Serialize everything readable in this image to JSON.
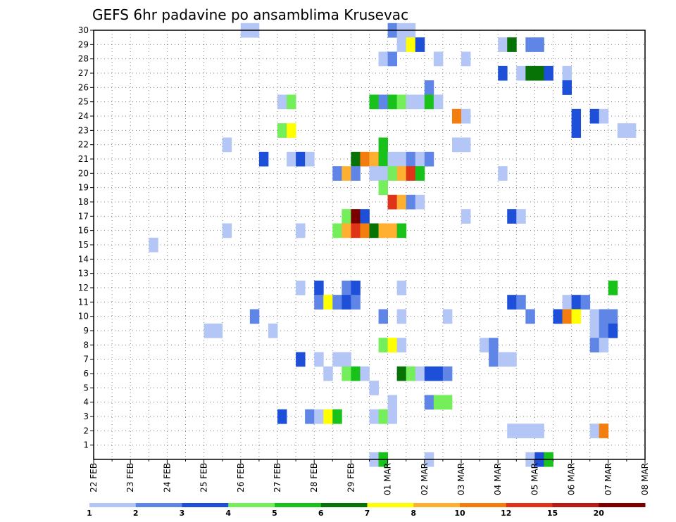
{
  "chart_data": {
    "type": "heatmap",
    "title": "GEFS 6hr padavine po ansamblima Krusevac",
    "y_ticks": [
      "1",
      "2",
      "3",
      "4",
      "5",
      "6",
      "7",
      "8",
      "9",
      "10",
      "11",
      "12",
      "13",
      "14",
      "15",
      "16",
      "17",
      "18",
      "19",
      "20",
      "21",
      "22",
      "23",
      "24",
      "25",
      "26",
      "27",
      "28",
      "29",
      "30"
    ],
    "x_ticks": [
      "22 FEB",
      "23 FEB",
      "24 FEB",
      "25 FEB",
      "26 FEB",
      "27 FEB",
      "28 FEB",
      "29 FEB",
      "01 MAR",
      "02 MAR",
      "03 MAR",
      "04 MAR",
      "05 MAR",
      "06 MAR",
      "07 MAR",
      "08 MAR"
    ],
    "xlim_days": [
      0,
      15
    ],
    "ylim": [
      0,
      30
    ],
    "grid": true,
    "legend": {
      "position": "bottom",
      "labels": [
        "1",
        "2",
        "3",
        "4",
        "5",
        "6",
        "7",
        "8",
        "10",
        "12",
        "15",
        "20"
      ],
      "colors": [
        "#b3c6f5",
        "#5f85e6",
        "#1e4fd8",
        "#74ee5a",
        "#18c21b",
        "#077307",
        "#ffff00",
        "#ffb030",
        "#f47d10",
        "#e03418",
        "#b81b14",
        "#7a0000"
      ]
    },
    "color_bins": {
      "1": "#b3c6f5",
      "2": "#5f85e6",
      "3": "#1e4fd8",
      "4": "#74ee5a",
      "5": "#18c21b",
      "6": "#077307",
      "7": "#ffff00",
      "8": "#ffb030",
      "10": "#f47d10",
      "12": "#e03418",
      "15": "#b81b14",
      "20": "#7a0000"
    },
    "cells": [
      [
        4.0,
        30,
        1
      ],
      [
        4.25,
        30,
        1
      ],
      [
        8.0,
        30,
        2
      ],
      [
        8.25,
        30,
        1
      ],
      [
        8.5,
        30,
        1
      ],
      [
        8.25,
        29,
        1
      ],
      [
        8.5,
        29,
        7
      ],
      [
        8.75,
        29,
        3
      ],
      [
        11.0,
        29,
        1
      ],
      [
        11.25,
        29,
        6
      ],
      [
        11.75,
        29,
        2
      ],
      [
        12.0,
        29,
        2
      ],
      [
        7.75,
        28,
        1
      ],
      [
        8.0,
        28,
        2
      ],
      [
        9.25,
        28,
        1
      ],
      [
        10.0,
        28,
        1
      ],
      [
        11.0,
        27,
        3
      ],
      [
        11.5,
        27,
        1
      ],
      [
        11.75,
        27,
        6
      ],
      [
        12.0,
        27,
        6
      ],
      [
        12.25,
        27,
        3
      ],
      [
        12.75,
        27,
        1
      ],
      [
        9.0,
        26,
        2
      ],
      [
        12.75,
        26,
        3
      ],
      [
        5.0,
        25,
        1
      ],
      [
        5.25,
        25,
        4
      ],
      [
        7.5,
        25,
        5
      ],
      [
        7.75,
        25,
        2
      ],
      [
        8.0,
        25,
        5
      ],
      [
        8.25,
        25,
        4
      ],
      [
        8.5,
        25,
        1
      ],
      [
        8.75,
        25,
        1
      ],
      [
        9.0,
        25,
        5
      ],
      [
        9.25,
        25,
        1
      ],
      [
        9.75,
        24,
        10
      ],
      [
        10.0,
        24,
        1
      ],
      [
        13.0,
        24,
        3
      ],
      [
        13.5,
        24,
        3
      ],
      [
        13.75,
        24,
        1
      ],
      [
        13.0,
        23,
        3
      ],
      [
        14.25,
        23,
        1
      ],
      [
        14.5,
        23,
        1
      ],
      [
        5.0,
        23,
        4
      ],
      [
        5.25,
        23,
        7
      ],
      [
        3.5,
        22,
        1
      ],
      [
        7.75,
        22,
        5
      ],
      [
        9.75,
        22,
        1
      ],
      [
        10.0,
        22,
        1
      ],
      [
        4.5,
        21,
        3
      ],
      [
        5.25,
        21,
        1
      ],
      [
        5.5,
        21,
        3
      ],
      [
        5.75,
        21,
        1
      ],
      [
        7.0,
        21,
        6
      ],
      [
        7.25,
        21,
        10
      ],
      [
        7.5,
        21,
        8
      ],
      [
        7.75,
        21,
        5
      ],
      [
        8.0,
        21,
        1
      ],
      [
        8.25,
        21,
        1
      ],
      [
        8.5,
        21,
        2
      ],
      [
        8.75,
        21,
        1
      ],
      [
        9.0,
        21,
        2
      ],
      [
        6.5,
        20,
        2
      ],
      [
        6.75,
        20,
        8
      ],
      [
        7.0,
        20,
        2
      ],
      [
        7.5,
        20,
        1
      ],
      [
        7.75,
        20,
        1
      ],
      [
        8.0,
        20,
        4
      ],
      [
        8.25,
        20,
        8
      ],
      [
        8.5,
        20,
        12
      ],
      [
        8.75,
        20,
        5
      ],
      [
        11.0,
        20,
        1
      ],
      [
        7.75,
        19,
        4
      ],
      [
        8.0,
        18,
        12
      ],
      [
        8.25,
        18,
        8
      ],
      [
        8.5,
        18,
        2
      ],
      [
        8.75,
        18,
        1
      ],
      [
        6.75,
        17,
        4
      ],
      [
        7.0,
        17,
        20
      ],
      [
        7.25,
        17,
        3
      ],
      [
        10.0,
        17,
        1
      ],
      [
        11.25,
        17,
        3
      ],
      [
        11.5,
        17,
        1
      ],
      [
        3.5,
        16,
        1
      ],
      [
        5.5,
        16,
        1
      ],
      [
        6.5,
        16,
        4
      ],
      [
        6.75,
        16,
        8
      ],
      [
        7.0,
        16,
        12
      ],
      [
        7.25,
        16,
        10
      ],
      [
        7.5,
        16,
        6
      ],
      [
        7.75,
        16,
        8
      ],
      [
        8.0,
        16,
        8
      ],
      [
        8.25,
        16,
        5
      ],
      [
        1.5,
        15,
        1
      ],
      [
        5.5,
        12,
        1
      ],
      [
        6.0,
        12,
        3
      ],
      [
        6.75,
        12,
        2
      ],
      [
        7.0,
        12,
        3
      ],
      [
        8.25,
        12,
        1
      ],
      [
        14.0,
        12,
        5
      ],
      [
        6.0,
        11,
        2
      ],
      [
        6.25,
        11,
        7
      ],
      [
        6.5,
        11,
        2
      ],
      [
        6.75,
        11,
        3
      ],
      [
        7.0,
        11,
        2
      ],
      [
        11.25,
        11,
        3
      ],
      [
        11.5,
        11,
        2
      ],
      [
        12.75,
        11,
        1
      ],
      [
        13.0,
        11,
        3
      ],
      [
        13.25,
        11,
        2
      ],
      [
        4.25,
        10,
        2
      ],
      [
        7.75,
        10,
        2
      ],
      [
        8.25,
        10,
        1
      ],
      [
        9.5,
        10,
        1
      ],
      [
        11.75,
        10,
        2
      ],
      [
        12.5,
        10,
        3
      ],
      [
        12.75,
        10,
        10
      ],
      [
        13.0,
        10,
        7
      ],
      [
        13.5,
        10,
        1
      ],
      [
        13.75,
        10,
        2
      ],
      [
        14.0,
        10,
        2
      ],
      [
        3.0,
        9,
        1
      ],
      [
        3.25,
        9,
        1
      ],
      [
        4.75,
        9,
        1
      ],
      [
        13.5,
        9,
        1
      ],
      [
        13.75,
        9,
        2
      ],
      [
        14.0,
        9,
        3
      ],
      [
        7.75,
        8,
        4
      ],
      [
        8.0,
        8,
        7
      ],
      [
        8.25,
        8,
        1
      ],
      [
        10.5,
        8,
        1
      ],
      [
        10.75,
        8,
        2
      ],
      [
        13.5,
        8,
        2
      ],
      [
        13.75,
        8,
        1
      ],
      [
        5.5,
        7,
        3
      ],
      [
        6.0,
        7,
        1
      ],
      [
        6.5,
        7,
        1
      ],
      [
        6.75,
        7,
        1
      ],
      [
        10.75,
        7,
        2
      ],
      [
        11.0,
        7,
        1
      ],
      [
        11.25,
        7,
        1
      ],
      [
        6.25,
        6,
        1
      ],
      [
        6.75,
        6,
        4
      ],
      [
        7.0,
        6,
        5
      ],
      [
        7.25,
        6,
        1
      ],
      [
        8.25,
        6,
        6
      ],
      [
        8.5,
        6,
        4
      ],
      [
        8.75,
        6,
        1
      ],
      [
        9.0,
        6,
        3
      ],
      [
        9.25,
        6,
        3
      ],
      [
        9.5,
        6,
        2
      ],
      [
        7.5,
        5,
        1
      ],
      [
        8.0,
        4,
        1
      ],
      [
        9.0,
        4,
        2
      ],
      [
        9.25,
        4,
        4
      ],
      [
        9.5,
        4,
        4
      ],
      [
        5.0,
        3,
        3
      ],
      [
        5.75,
        3,
        2
      ],
      [
        6.0,
        3,
        1
      ],
      [
        6.25,
        3,
        7
      ],
      [
        6.5,
        3,
        5
      ],
      [
        7.5,
        3,
        1
      ],
      [
        7.75,
        3,
        4
      ],
      [
        8.0,
        3,
        1
      ],
      [
        11.25,
        2,
        1
      ],
      [
        11.5,
        2,
        1
      ],
      [
        11.75,
        2,
        1
      ],
      [
        12.0,
        2,
        1
      ],
      [
        13.5,
        2,
        1
      ],
      [
        13.75,
        2,
        10
      ],
      [
        7.5,
        0,
        1
      ],
      [
        7.75,
        0,
        5
      ],
      [
        9.0,
        0,
        1
      ],
      [
        11.75,
        0,
        1
      ],
      [
        12.0,
        0,
        3
      ],
      [
        12.25,
        0,
        5
      ]
    ]
  }
}
